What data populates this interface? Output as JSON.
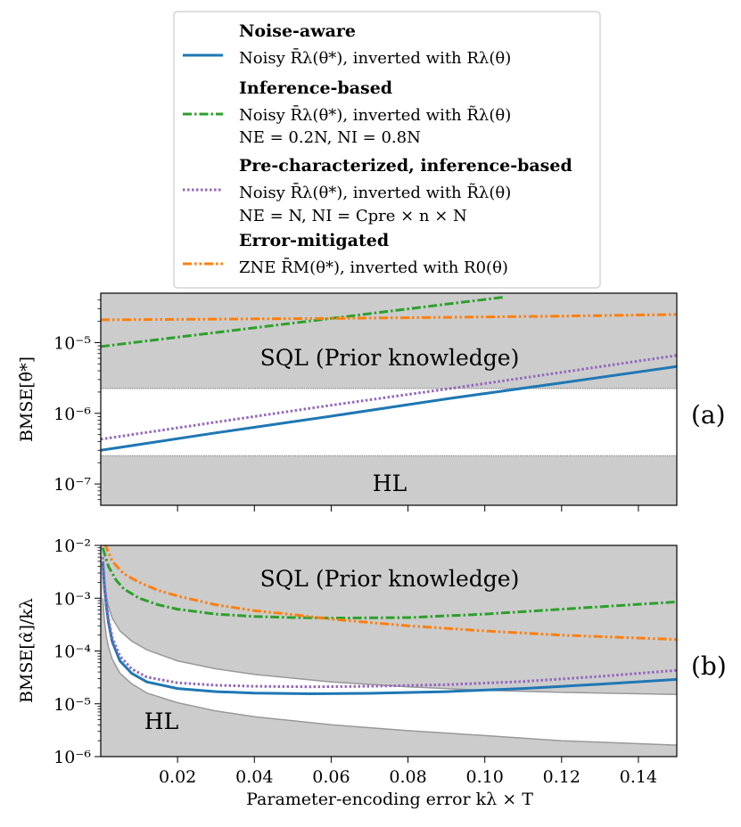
{
  "legend": {
    "entries": [
      {
        "title": "Noise-aware",
        "lines": [
          "Noisy R̄λ(θ*), inverted with Rλ(θ)"
        ],
        "color": "#1f77b4",
        "style": "solid"
      },
      {
        "title": "Inference-based",
        "lines": [
          "Noisy R̄λ(θ*), inverted with R̃λ(θ)",
          "NE = 0.2N, NI = 0.8N"
        ],
        "color": "#2ca02c",
        "style": "dashdot"
      },
      {
        "title": "Pre-characterized, inference-based",
        "lines": [
          "Noisy R̄λ(θ*), inverted with R̃λ(θ)",
          "NE = N, NI = Cpre × n × N"
        ],
        "color": "#9467bd",
        "style": "dotted"
      },
      {
        "title": "Error-mitigated",
        "lines": [
          "ZNE R̄M(θ*), inverted with R0(θ)"
        ],
        "color": "#ff7f0e",
        "style": "dashdotdot"
      }
    ]
  },
  "chart_data": [
    {
      "panel": "(a)",
      "type": "line",
      "ylabel": "BMSE[θ̂*]",
      "yscale": "log",
      "xlim": [
        0.0,
        0.15
      ],
      "ylim": [
        5e-08,
        5e-05
      ],
      "yticks": [
        {
          "value": 1e-07,
          "label": "10⁻⁷"
        },
        {
          "value": 1e-06,
          "label": "10⁻⁶"
        },
        {
          "value": 1e-05,
          "label": "10⁻⁵"
        }
      ],
      "shaded_regions": [
        {
          "label": "SQL (Prior knowledge)",
          "from": 2.25e-06,
          "to": 5e-05
        },
        {
          "label": "HL",
          "from": 5e-08,
          "to": 2.5e-07
        }
      ],
      "series": [
        {
          "name": "Noise-aware",
          "x": [
            0.0,
            0.03,
            0.06,
            0.09,
            0.12,
            0.15
          ],
          "values": [
            3e-07,
            5.3e-07,
            9.1e-07,
            1.6e-06,
            2.7e-06,
            4.6e-06
          ]
        },
        {
          "name": "Inference-based",
          "x": [
            0.0,
            0.03,
            0.06,
            0.09,
            0.105
          ],
          "values": [
            8.8e-06,
            1.39e-05,
            2.2e-05,
            3.5e-05,
            4.4e-05
          ]
        },
        {
          "name": "Pre-characterized, inference-based",
          "x": [
            0.0,
            0.03,
            0.06,
            0.09,
            0.12,
            0.15
          ],
          "values": [
            4.3e-07,
            7.5e-07,
            1.3e-06,
            2.2e-06,
            3.8e-06,
            6.6e-06
          ]
        },
        {
          "name": "Error-mitigated",
          "x": [
            0.0,
            0.03,
            0.06,
            0.09,
            0.12,
            0.15
          ],
          "values": [
            2.1e-05,
            2.15e-05,
            2.2e-05,
            2.28e-05,
            2.37e-05,
            2.5e-05
          ]
        }
      ]
    },
    {
      "panel": "(b)",
      "type": "line",
      "ylabel": "BMSE[α̂]/kλ",
      "xlabel": "Parameter-encoding error kλ × T",
      "yscale": "log",
      "xlim": [
        0.0,
        0.15
      ],
      "ylim": [
        1e-06,
        0.01
      ],
      "xticks": [
        {
          "value": 0.02,
          "label": "0.02"
        },
        {
          "value": 0.04,
          "label": "0.04"
        },
        {
          "value": 0.06,
          "label": "0.06"
        },
        {
          "value": 0.08,
          "label": "0.08"
        },
        {
          "value": 0.1,
          "label": "0.10"
        },
        {
          "value": 0.12,
          "label": "0.12"
        },
        {
          "value": 0.14,
          "label": "0.14"
        }
      ],
      "yticks": [
        {
          "value": 1e-06,
          "label": "10⁻⁶"
        },
        {
          "value": 1e-05,
          "label": "10⁻⁵"
        },
        {
          "value": 0.0001,
          "label": "10⁻⁴"
        },
        {
          "value": 0.001,
          "label": "10⁻³"
        },
        {
          "value": 0.01,
          "label": "10⁻²"
        }
      ],
      "shaded_regions": [
        {
          "label": "SQL (Prior knowledge)",
          "boundary_x": [
            0.0005,
            0.001,
            0.0015,
            0.002,
            0.003,
            0.005,
            0.008,
            0.012,
            0.02,
            0.03,
            0.04,
            0.06,
            0.08,
            0.1,
            0.12,
            0.15
          ],
          "boundary_y": [
            0.003,
            0.0015,
            0.001,
            0.0007,
            0.00042,
            0.00024,
            0.000155,
            0.000105,
            6.5e-05,
            4.6e-05,
            3.6e-05,
            2.6e-05,
            2.1e-05,
            1.8e-05,
            1.65e-05,
            1.5e-05
          ]
        },
        {
          "label": "HL",
          "boundary_x": [
            0.0005,
            0.001,
            0.0015,
            0.002,
            0.003,
            0.005,
            0.008,
            0.012,
            0.02,
            0.03,
            0.04,
            0.06,
            0.08,
            0.1,
            0.12,
            0.15
          ],
          "boundary_y": [
            0.001,
            0.00035,
            0.00018,
            0.00012,
            7e-05,
            3.8e-05,
            2.4e-05,
            1.6e-05,
            1.05e-05,
            7.3e-06,
            5.7e-06,
            4e-06,
            3.1e-06,
            2.5e-06,
            2e-06,
            1.65e-06
          ]
        }
      ],
      "series": [
        {
          "name": "Noise-aware",
          "x": [
            0.0005,
            0.001,
            0.0015,
            0.002,
            0.003,
            0.005,
            0.008,
            0.012,
            0.02,
            0.03,
            0.04,
            0.055,
            0.07,
            0.09,
            0.11,
            0.13,
            0.15
          ],
          "values": [
            0.005,
            0.0015,
            0.00065,
            0.00035,
            0.00015,
            6.5e-05,
            3.8e-05,
            2.6e-05,
            1.95e-05,
            1.7e-05,
            1.6e-05,
            1.55e-05,
            1.58e-05,
            1.7e-05,
            1.95e-05,
            2.35e-05,
            2.9e-05
          ]
        },
        {
          "name": "Inference-based",
          "x": [
            0.0005,
            0.002,
            0.004,
            0.006,
            0.01,
            0.015,
            0.02,
            0.03,
            0.04,
            0.05,
            0.06,
            0.08,
            0.1,
            0.12,
            0.15
          ],
          "values": [
            0.009,
            0.004,
            0.0022,
            0.0015,
            0.001,
            0.00075,
            0.00062,
            0.0005,
            0.00045,
            0.00043,
            0.00042,
            0.00043,
            0.0005,
            0.00062,
            0.00085
          ]
        },
        {
          "name": "Pre-characterized, inference-based",
          "x": [
            0.0005,
            0.001,
            0.0015,
            0.002,
            0.003,
            0.005,
            0.008,
            0.012,
            0.02,
            0.03,
            0.04,
            0.055,
            0.07,
            0.09,
            0.11,
            0.13,
            0.15
          ],
          "values": [
            0.006,
            0.0018,
            0.0008,
            0.00042,
            0.00018,
            8e-05,
            4.6e-05,
            3.2e-05,
            2.5e-05,
            2.25e-05,
            2.15e-05,
            2.1e-05,
            2.15e-05,
            2.3e-05,
            2.65e-05,
            3.3e-05,
            4.3e-05
          ]
        },
        {
          "name": "Error-mitigated",
          "x": [
            0.001,
            0.003,
            0.006,
            0.01,
            0.015,
            0.02,
            0.03,
            0.04,
            0.05,
            0.06,
            0.08,
            0.1,
            0.12,
            0.15
          ],
          "values": [
            0.011,
            0.005,
            0.0029,
            0.002,
            0.0014,
            0.0011,
            0.00075,
            0.00058,
            0.00049,
            0.0004,
            0.0003,
            0.00024,
            0.0002,
            0.000165
          ]
        }
      ]
    }
  ]
}
